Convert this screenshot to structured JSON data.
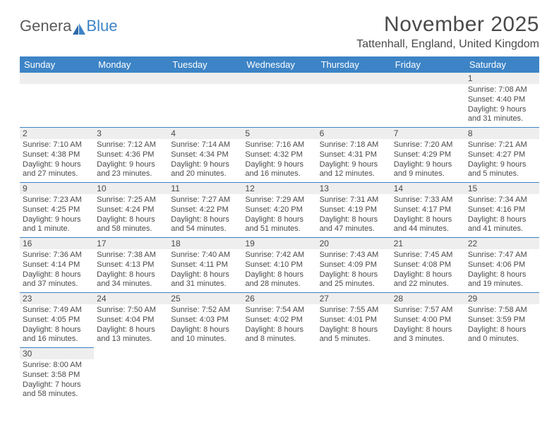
{
  "logo": {
    "text1": "Genera",
    "text2": "Blue"
  },
  "title": "November 2025",
  "location": "Tattenhall, England, United Kingdom",
  "colors": {
    "header_bg": "#3d84c6",
    "border": "#3d84c6",
    "daynum_bg": "#eeeeee",
    "text": "#4a4a4a"
  },
  "dayHeaders": [
    "Sunday",
    "Monday",
    "Tuesday",
    "Wednesday",
    "Thursday",
    "Friday",
    "Saturday"
  ],
  "weeks": [
    [
      {
        "blank": true
      },
      {
        "blank": true
      },
      {
        "blank": true
      },
      {
        "blank": true
      },
      {
        "blank": true
      },
      {
        "blank": true
      },
      {
        "n": "1",
        "sr": "Sunrise: 7:08 AM",
        "ss": "Sunset: 4:40 PM",
        "d1": "Daylight: 9 hours",
        "d2": "and 31 minutes."
      }
    ],
    [
      {
        "n": "2",
        "sr": "Sunrise: 7:10 AM",
        "ss": "Sunset: 4:38 PM",
        "d1": "Daylight: 9 hours",
        "d2": "and 27 minutes."
      },
      {
        "n": "3",
        "sr": "Sunrise: 7:12 AM",
        "ss": "Sunset: 4:36 PM",
        "d1": "Daylight: 9 hours",
        "d2": "and 23 minutes."
      },
      {
        "n": "4",
        "sr": "Sunrise: 7:14 AM",
        "ss": "Sunset: 4:34 PM",
        "d1": "Daylight: 9 hours",
        "d2": "and 20 minutes."
      },
      {
        "n": "5",
        "sr": "Sunrise: 7:16 AM",
        "ss": "Sunset: 4:32 PM",
        "d1": "Daylight: 9 hours",
        "d2": "and 16 minutes."
      },
      {
        "n": "6",
        "sr": "Sunrise: 7:18 AM",
        "ss": "Sunset: 4:31 PM",
        "d1": "Daylight: 9 hours",
        "d2": "and 12 minutes."
      },
      {
        "n": "7",
        "sr": "Sunrise: 7:20 AM",
        "ss": "Sunset: 4:29 PM",
        "d1": "Daylight: 9 hours",
        "d2": "and 9 minutes."
      },
      {
        "n": "8",
        "sr": "Sunrise: 7:21 AM",
        "ss": "Sunset: 4:27 PM",
        "d1": "Daylight: 9 hours",
        "d2": "and 5 minutes."
      }
    ],
    [
      {
        "n": "9",
        "sr": "Sunrise: 7:23 AM",
        "ss": "Sunset: 4:25 PM",
        "d1": "Daylight: 9 hours",
        "d2": "and 1 minute."
      },
      {
        "n": "10",
        "sr": "Sunrise: 7:25 AM",
        "ss": "Sunset: 4:24 PM",
        "d1": "Daylight: 8 hours",
        "d2": "and 58 minutes."
      },
      {
        "n": "11",
        "sr": "Sunrise: 7:27 AM",
        "ss": "Sunset: 4:22 PM",
        "d1": "Daylight: 8 hours",
        "d2": "and 54 minutes."
      },
      {
        "n": "12",
        "sr": "Sunrise: 7:29 AM",
        "ss": "Sunset: 4:20 PM",
        "d1": "Daylight: 8 hours",
        "d2": "and 51 minutes."
      },
      {
        "n": "13",
        "sr": "Sunrise: 7:31 AM",
        "ss": "Sunset: 4:19 PM",
        "d1": "Daylight: 8 hours",
        "d2": "and 47 minutes."
      },
      {
        "n": "14",
        "sr": "Sunrise: 7:33 AM",
        "ss": "Sunset: 4:17 PM",
        "d1": "Daylight: 8 hours",
        "d2": "and 44 minutes."
      },
      {
        "n": "15",
        "sr": "Sunrise: 7:34 AM",
        "ss": "Sunset: 4:16 PM",
        "d1": "Daylight: 8 hours",
        "d2": "and 41 minutes."
      }
    ],
    [
      {
        "n": "16",
        "sr": "Sunrise: 7:36 AM",
        "ss": "Sunset: 4:14 PM",
        "d1": "Daylight: 8 hours",
        "d2": "and 37 minutes."
      },
      {
        "n": "17",
        "sr": "Sunrise: 7:38 AM",
        "ss": "Sunset: 4:13 PM",
        "d1": "Daylight: 8 hours",
        "d2": "and 34 minutes."
      },
      {
        "n": "18",
        "sr": "Sunrise: 7:40 AM",
        "ss": "Sunset: 4:11 PM",
        "d1": "Daylight: 8 hours",
        "d2": "and 31 minutes."
      },
      {
        "n": "19",
        "sr": "Sunrise: 7:42 AM",
        "ss": "Sunset: 4:10 PM",
        "d1": "Daylight: 8 hours",
        "d2": "and 28 minutes."
      },
      {
        "n": "20",
        "sr": "Sunrise: 7:43 AM",
        "ss": "Sunset: 4:09 PM",
        "d1": "Daylight: 8 hours",
        "d2": "and 25 minutes."
      },
      {
        "n": "21",
        "sr": "Sunrise: 7:45 AM",
        "ss": "Sunset: 4:08 PM",
        "d1": "Daylight: 8 hours",
        "d2": "and 22 minutes."
      },
      {
        "n": "22",
        "sr": "Sunrise: 7:47 AM",
        "ss": "Sunset: 4:06 PM",
        "d1": "Daylight: 8 hours",
        "d2": "and 19 minutes."
      }
    ],
    [
      {
        "n": "23",
        "sr": "Sunrise: 7:49 AM",
        "ss": "Sunset: 4:05 PM",
        "d1": "Daylight: 8 hours",
        "d2": "and 16 minutes."
      },
      {
        "n": "24",
        "sr": "Sunrise: 7:50 AM",
        "ss": "Sunset: 4:04 PM",
        "d1": "Daylight: 8 hours",
        "d2": "and 13 minutes."
      },
      {
        "n": "25",
        "sr": "Sunrise: 7:52 AM",
        "ss": "Sunset: 4:03 PM",
        "d1": "Daylight: 8 hours",
        "d2": "and 10 minutes."
      },
      {
        "n": "26",
        "sr": "Sunrise: 7:54 AM",
        "ss": "Sunset: 4:02 PM",
        "d1": "Daylight: 8 hours",
        "d2": "and 8 minutes."
      },
      {
        "n": "27",
        "sr": "Sunrise: 7:55 AM",
        "ss": "Sunset: 4:01 PM",
        "d1": "Daylight: 8 hours",
        "d2": "and 5 minutes."
      },
      {
        "n": "28",
        "sr": "Sunrise: 7:57 AM",
        "ss": "Sunset: 4:00 PM",
        "d1": "Daylight: 8 hours",
        "d2": "and 3 minutes."
      },
      {
        "n": "29",
        "sr": "Sunrise: 7:58 AM",
        "ss": "Sunset: 3:59 PM",
        "d1": "Daylight: 8 hours",
        "d2": "and 0 minutes."
      }
    ],
    [
      {
        "n": "30",
        "sr": "Sunrise: 8:00 AM",
        "ss": "Sunset: 3:58 PM",
        "d1": "Daylight: 7 hours",
        "d2": "and 58 minutes."
      },
      {
        "blank": true
      },
      {
        "blank": true
      },
      {
        "blank": true
      },
      {
        "blank": true
      },
      {
        "blank": true
      },
      {
        "blank": true
      }
    ]
  ]
}
